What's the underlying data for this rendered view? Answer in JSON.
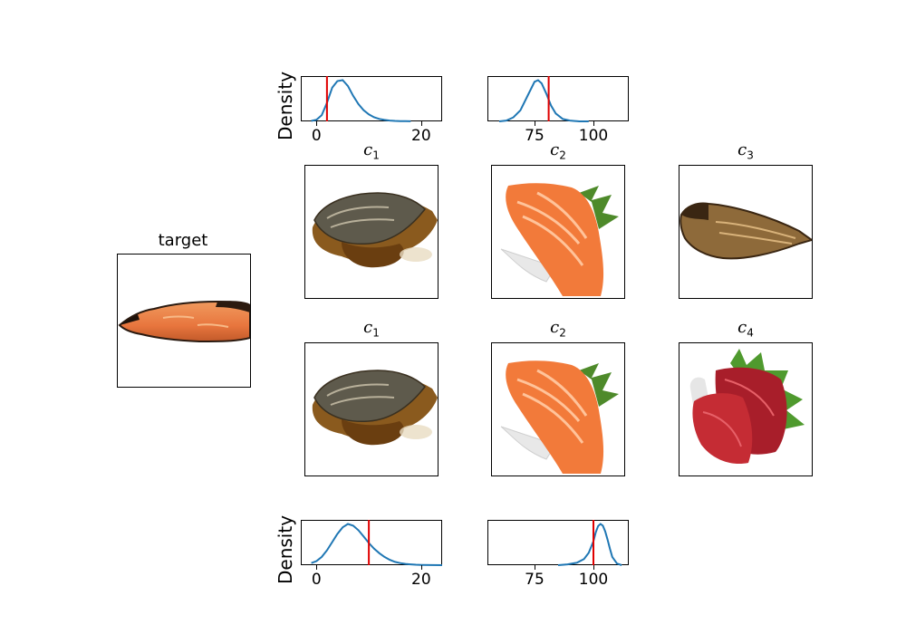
{
  "target": {
    "title": "target"
  },
  "rows": [
    {
      "cells": [
        {
          "var": "c",
          "sub": "1",
          "food": "grilled-mackerel-in-sauce"
        },
        {
          "var": "c",
          "sub": "2",
          "food": "salmon-sashimi"
        },
        {
          "var": "c",
          "sub": "3",
          "food": "dried-grilled-fish"
        }
      ]
    },
    {
      "cells": [
        {
          "var": "c",
          "sub": "1",
          "food": "grilled-mackerel-in-sauce"
        },
        {
          "var": "c",
          "sub": "2",
          "food": "salmon-sashimi"
        },
        {
          "var": "c",
          "sub": "4",
          "food": "tuna-sashimi"
        }
      ]
    }
  ],
  "chart_data": [
    {
      "type": "line",
      "position": "top-left",
      "ylabel": "Density",
      "xlim": [
        -3,
        24
      ],
      "xticks": [
        "0",
        "20"
      ],
      "xtick_values": [
        0,
        20
      ],
      "series": [
        {
          "x": [
            -1,
            0,
            1,
            2,
            3,
            4,
            5,
            6,
            7,
            8,
            9,
            10,
            11,
            12,
            13,
            14,
            15,
            16,
            17,
            18
          ],
          "y": [
            0.01,
            0.04,
            0.15,
            0.45,
            0.82,
            0.98,
            1.0,
            0.86,
            0.62,
            0.42,
            0.27,
            0.17,
            0.1,
            0.06,
            0.035,
            0.02,
            0.012,
            0.007,
            0.004,
            0.002
          ]
        }
      ],
      "vline": 2,
      "line_color": "#1f77b4",
      "vline_color": "#e00000"
    },
    {
      "type": "line",
      "position": "top-right",
      "ylabel": "",
      "xlim": [
        55,
        115
      ],
      "xticks": [
        "75",
        "100"
      ],
      "xtick_values": [
        75,
        100
      ],
      "series": [
        {
          "x": [
            60,
            63,
            66,
            69,
            72,
            75,
            76.5,
            78,
            80,
            82,
            84,
            87,
            90,
            94,
            98
          ],
          "y": [
            0.0,
            0.01,
            0.05,
            0.14,
            0.32,
            0.5,
            0.52,
            0.48,
            0.35,
            0.2,
            0.1,
            0.03,
            0.01,
            0.0,
            0.0
          ]
        }
      ],
      "vline": 81,
      "line_color": "#1f77b4",
      "vline_color": "#e00000"
    },
    {
      "type": "line",
      "position": "bottom-left",
      "ylabel": "Density",
      "xlim": [
        -3,
        24
      ],
      "xticks": [
        "0",
        "20"
      ],
      "xtick_values": [
        0,
        20
      ],
      "series": [
        {
          "x": [
            -1,
            0,
            1,
            2,
            3,
            4,
            5,
            6,
            7,
            8,
            9,
            10,
            11,
            12,
            13,
            14,
            15,
            16,
            17,
            18,
            19,
            20,
            22,
            24
          ],
          "y": [
            0.05,
            0.1,
            0.2,
            0.36,
            0.56,
            0.76,
            0.92,
            1.0,
            0.96,
            0.85,
            0.7,
            0.54,
            0.4,
            0.29,
            0.2,
            0.13,
            0.08,
            0.05,
            0.03,
            0.02,
            0.01,
            0.006,
            0.002,
            0.0
          ]
        }
      ],
      "vline": 10,
      "line_color": "#1f77b4",
      "vline_color": "#e00000"
    },
    {
      "type": "line",
      "position": "bottom-right",
      "ylabel": "",
      "xlim": [
        55,
        115
      ],
      "xticks": [
        "75",
        "100"
      ],
      "xtick_values": [
        75,
        100
      ],
      "series": [
        {
          "x": [
            85,
            89,
            93,
            96,
            98,
            100,
            101,
            102,
            103,
            104,
            105,
            106,
            107,
            108,
            110,
            112
          ],
          "y": [
            0.0,
            0.02,
            0.06,
            0.15,
            0.3,
            0.58,
            0.8,
            0.95,
            1.0,
            0.96,
            0.82,
            0.62,
            0.4,
            0.2,
            0.04,
            0.0
          ]
        }
      ],
      "vline": 100,
      "line_color": "#1f77b4",
      "vline_color": "#e00000"
    }
  ]
}
